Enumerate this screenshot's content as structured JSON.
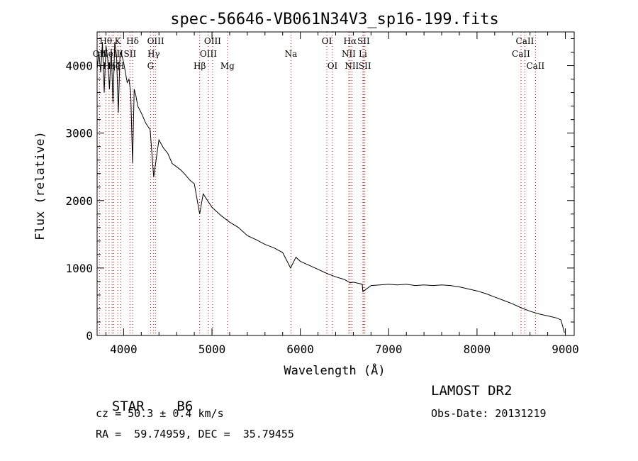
{
  "chart_data": {
    "type": "line",
    "title": "spec-56646-VB061N34V3_sp16-199.fits",
    "xlabel": "Wavelength (Å)",
    "ylabel": "Flux (relative)",
    "xlim": [
      3700,
      9100
    ],
    "ylim": [
      0,
      4500
    ],
    "xticks": [
      4000,
      5000,
      6000,
      7000,
      8000,
      9000
    ],
    "yticks": [
      0,
      1000,
      2000,
      3000,
      4000
    ],
    "grid": false,
    "line_color": "#000000",
    "line_marker_color": "#cc0000",
    "series": [
      {
        "x": [
          3700,
          3720,
          3740,
          3760,
          3780,
          3800,
          3820,
          3840,
          3860,
          3880,
          3900,
          3920,
          3940,
          3960,
          3980,
          4000,
          4020,
          4040,
          4060,
          4080,
          4101,
          4120,
          4140,
          4160,
          4200,
          4250,
          4300,
          4340,
          4400,
          4450,
          4500,
          4550,
          4600,
          4650,
          4700,
          4750,
          4800,
          4861,
          4900,
          5000,
          5100,
          5200,
          5300,
          5400,
          5500,
          5600,
          5700,
          5800,
          5890,
          5950,
          6000,
          6100,
          6200,
          6300,
          6400,
          6500,
          6563,
          6600,
          6700,
          6708,
          6800,
          6900,
          7000,
          7100,
          7200,
          7300,
          7400,
          7500,
          7600,
          7700,
          7800,
          7900,
          8000,
          8100,
          8200,
          8300,
          8400,
          8500,
          8600,
          8700,
          8800,
          8900,
          8950,
          8990
        ],
        "y": [
          3950,
          4200,
          3900,
          4350,
          3600,
          4300,
          4100,
          3650,
          4250,
          3450,
          4350,
          4150,
          3300,
          4200,
          4150,
          4050,
          3900,
          3750,
          3800,
          3600,
          2550,
          3650,
          3550,
          3400,
          3300,
          3150,
          3050,
          2350,
          2900,
          2780,
          2700,
          2550,
          2500,
          2450,
          2380,
          2300,
          2250,
          1800,
          2100,
          1900,
          1780,
          1680,
          1600,
          1480,
          1420,
          1350,
          1300,
          1230,
          1000,
          1160,
          1100,
          1040,
          980,
          920,
          870,
          830,
          780,
          790,
          760,
          650,
          740,
          750,
          760,
          750,
          760,
          740,
          750,
          740,
          750,
          740,
          720,
          690,
          660,
          620,
          570,
          520,
          470,
          410,
          360,
          320,
          290,
          260,
          230,
          40
        ]
      }
    ],
    "line_labels": [
      {
        "text": "OII",
        "x": 3727,
        "row": 1
      },
      {
        "text": "Hθ",
        "x": 3798,
        "row": 0
      },
      {
        "text": "Hη",
        "x": 3835,
        "row": 2
      },
      {
        "text": "NeIII",
        "x": 3869,
        "row": 1
      },
      {
        "text": "Hζ",
        "x": 3889,
        "row": 2
      },
      {
        "text": "K",
        "x": 3934,
        "row": 0
      },
      {
        "text": "H",
        "x": 3968,
        "row": 2
      },
      {
        "text": "Hδ",
        "x": 4101,
        "row": 0
      },
      {
        "text": "SII",
        "x": 4072,
        "row": 1
      },
      {
        "text": "OIII",
        "x": 4363,
        "row": 0
      },
      {
        "text": "Hγ",
        "x": 4340,
        "row": 1
      },
      {
        "text": "G",
        "x": 4305,
        "row": 2
      },
      {
        "text": "Hβ",
        "x": 4861,
        "row": 2
      },
      {
        "text": "OIII",
        "x": 5007,
        "row": 0
      },
      {
        "text": "OIII",
        "x": 4959,
        "row": 1
      },
      {
        "text": "Mg",
        "x": 5175,
        "row": 2
      },
      {
        "text": "Na",
        "x": 5894,
        "row": 1
      },
      {
        "text": "OI",
        "x": 6300,
        "row": 0
      },
      {
        "text": "OI",
        "x": 6364,
        "row": 2
      },
      {
        "text": "Hα",
        "x": 6563,
        "row": 0
      },
      {
        "text": "SII",
        "x": 6716,
        "row": 0
      },
      {
        "text": "NII",
        "x": 6548,
        "row": 1
      },
      {
        "text": "Li",
        "x": 6708,
        "row": 1
      },
      {
        "text": "NII",
        "x": 6583,
        "row": 2
      },
      {
        "text": "SII",
        "x": 6731,
        "row": 2
      },
      {
        "text": "CaII",
        "x": 8542,
        "row": 0
      },
      {
        "text": "CaII",
        "x": 8498,
        "row": 1
      },
      {
        "text": "CaII",
        "x": 8662,
        "row": 2
      }
    ],
    "line_markers": [
      3727,
      3798,
      3835,
      3869,
      3889,
      3934,
      3968,
      4072,
      4101,
      4305,
      4340,
      4363,
      4861,
      4959,
      5007,
      5175,
      5894,
      6300,
      6364,
      6548,
      6563,
      6583,
      6708,
      6716,
      6731,
      8498,
      8542,
      8662
    ]
  },
  "info": {
    "object_class": "STAR",
    "subclass": "B6",
    "survey": "LAMOST DR2",
    "redshift_text": "cz = 50.3 ± 0.4 km/s",
    "obs_date": "Obs-Date: 20131219",
    "coords": "RA =  59.74959, DEC =  35.79455"
  }
}
